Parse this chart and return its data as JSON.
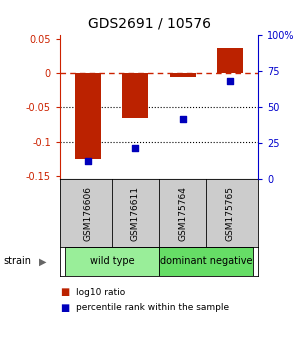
{
  "title": "GDS2691 / 10576",
  "samples": [
    "GSM176606",
    "GSM176611",
    "GSM175764",
    "GSM175765"
  ],
  "log10_ratio": [
    -0.125,
    -0.065,
    -0.005,
    0.037
  ],
  "percentile_rank": [
    13,
    22,
    42,
    68
  ],
  "bar_color": "#bb2200",
  "square_color": "#0000bb",
  "ylim_left": [
    -0.155,
    0.055
  ],
  "ylim_right": [
    0,
    100
  ],
  "left_yticks": [
    -0.15,
    -0.1,
    -0.05,
    0.0,
    0.05
  ],
  "left_yticklabels": [
    "-0.15",
    "-0.1",
    "-0.05",
    "0",
    "0.05"
  ],
  "right_yticks": [
    0,
    25,
    50,
    75,
    100
  ],
  "right_yticklabels": [
    "0",
    "25",
    "50",
    "75",
    "100%"
  ],
  "groups": [
    {
      "label": "wild type",
      "indices": [
        0,
        1
      ],
      "color": "#99ee99"
    },
    {
      "label": "dominant negative",
      "indices": [
        2,
        3
      ],
      "color": "#66dd66"
    }
  ],
  "strain_label": "strain",
  "legend_items": [
    {
      "label": "log10 ratio",
      "color": "#bb2200"
    },
    {
      "label": "percentile rank within the sample",
      "color": "#0000bb"
    }
  ],
  "title_fontsize": 10,
  "tick_fontsize": 7,
  "bar_width": 0.55,
  "background_color": "#ffffff"
}
